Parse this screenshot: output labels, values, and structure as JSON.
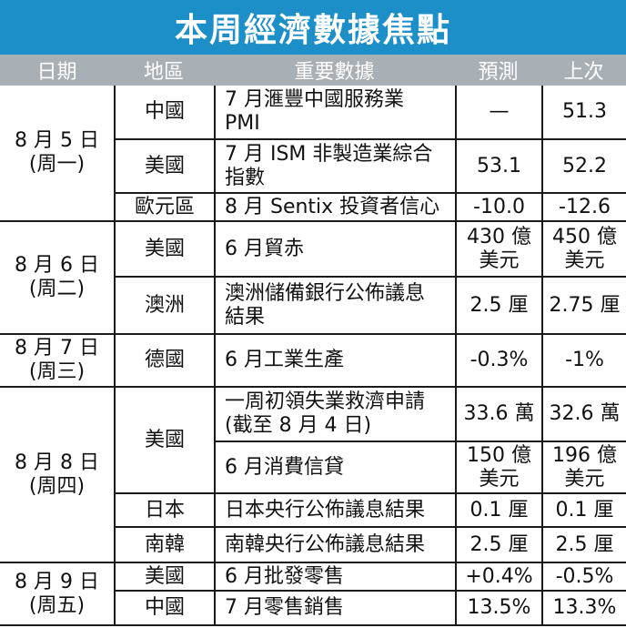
{
  "title": "本周經濟數據焦點",
  "headers": [
    "日期",
    "地區",
    "重要數據",
    "預測",
    "上次"
  ],
  "dates": [
    {
      "line1": "8 月 5 日",
      "line2": "(周一)"
    },
    {
      "line1": "8 月 6 日",
      "line2": "(周二)"
    },
    {
      "line1": "8 月 7 日",
      "line2": "(周三)"
    },
    {
      "line1": "8 月 8 日",
      "line2": "(周四)"
    },
    {
      "line1": "8 月 9 日",
      "line2": "(周五)"
    }
  ],
  "regions": [
    "中國",
    "美國",
    "歐元區",
    "美國",
    "澳洲",
    "德國",
    "美國",
    "日本",
    "南韓",
    "美國",
    "中國"
  ],
  "rows": [
    {
      "data": "7 月滙豐中國服務業\nPMI",
      "forecast": "—",
      "previous": "51.3"
    },
    {
      "data": "7 月 ISM 非製造業綜合\n指數",
      "forecast": "53.1",
      "previous": "52.2"
    },
    {
      "data": "8 月 Sentix 投資者信心",
      "forecast": "-10.0",
      "previous": "-12.6"
    },
    {
      "data": "6 月貿赤",
      "forecast": "430 億\n美元",
      "previous": "450 億\n美元"
    },
    {
      "data": "澳洲儲備銀行公佈議息\n結果",
      "forecast": "2.5 厘",
      "previous": "2.75 厘"
    },
    {
      "data": "6 月工業生產",
      "forecast": "-0.3%",
      "previous": "-1%"
    },
    {
      "data": "一周初領失業救濟申請\n(截至 8 月 4 日)",
      "forecast": "33.6 萬",
      "previous": "32.6 萬"
    },
    {
      "data": "6 月消費信貸",
      "forecast": "150 億\n美元",
      "previous": "196 億\n美元"
    },
    {
      "data": "日本央行公佈議息結果",
      "forecast": "0.1 厘",
      "previous": "0.1 厘"
    },
    {
      "data": "南韓央行公佈議息結果",
      "forecast": "2.5 厘",
      "previous": "2.5 厘"
    },
    {
      "data": "6 月批發零售",
      "forecast": "+0.4%",
      "previous": "-0.5%"
    },
    {
      "data": "7 月零售銷售",
      "forecast": "13.5%",
      "previous": "13.3%"
    }
  ]
}
